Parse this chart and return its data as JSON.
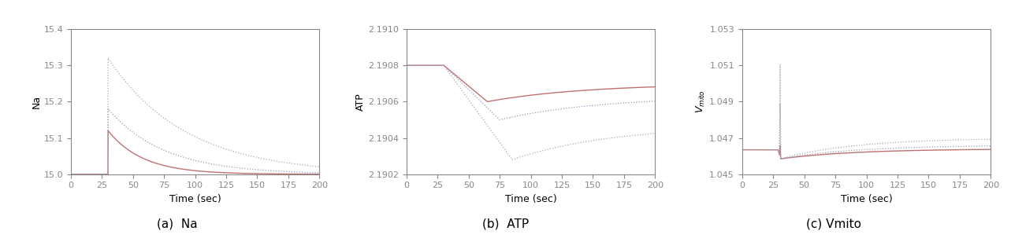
{
  "figsize": [
    12.83,
    3.08
  ],
  "dpi": 100,
  "subplots": [
    {
      "title": "(a)  Na",
      "ylabel": "Na",
      "xlabel": "Time (sec)",
      "xlim": [
        0,
        200
      ],
      "ylim": [
        15.0,
        15.4
      ],
      "yticks": [
        15.0,
        15.1,
        15.2,
        15.3,
        15.4
      ],
      "stim_time": 30,
      "baseline": 15.0,
      "peak_values": [
        15.12,
        15.18,
        15.32
      ],
      "decay_taus": [
        30,
        50,
        70
      ],
      "colors": [
        "#c0746a",
        "#9999cc",
        "#aaaaaa"
      ],
      "linestyles": [
        "solid",
        "dotted",
        "dotted"
      ]
    },
    {
      "title": "(b)  ATP",
      "ylabel": "ATP",
      "xlabel": "Time (sec)",
      "xlim": [
        0,
        200
      ],
      "ylim": [
        2.1902,
        2.191
      ],
      "yticks": [
        2.1902,
        2.1904,
        2.1906,
        2.1908,
        2.191
      ],
      "stim_time": 30,
      "baseline": 2.1908,
      "trough_values": [
        2.19065,
        2.19055,
        2.19028
      ],
      "trough_times": [
        65,
        75,
        85
      ],
      "recovery_values": [
        2.19068,
        2.19063,
        2.19047
      ],
      "colors": [
        "#c0746a",
        "#9999cc",
        "#aaaaaa"
      ],
      "linestyles": [
        "solid",
        "dotted",
        "dotted"
      ]
    },
    {
      "title": "(c) Vmito",
      "ylabel": "V_mito",
      "xlabel": "Time (sec)",
      "xlim": [
        0,
        200
      ],
      "ylim": [
        1.045,
        1.053
      ],
      "yticks": [
        1.045,
        1.047,
        1.049,
        1.051,
        1.053
      ],
      "stim_time": 30,
      "baseline": 1.04635,
      "peak_values": [
        1.0466,
        1.049,
        1.0512
      ],
      "decay_values": [
        1.0464,
        1.0466,
        1.047
      ],
      "plateau_values": [
        1.0464,
        1.0466,
        1.047
      ],
      "colors": [
        "#c0746a",
        "#9999cc",
        "#aaaaaa"
      ],
      "linestyles": [
        "solid",
        "dotted",
        "dotted"
      ]
    }
  ],
  "caption_fontsize": 11,
  "axis_label_fontsize": 9,
  "tick_fontsize": 8,
  "background_color": "#ffffff",
  "spine_color": "#888888"
}
